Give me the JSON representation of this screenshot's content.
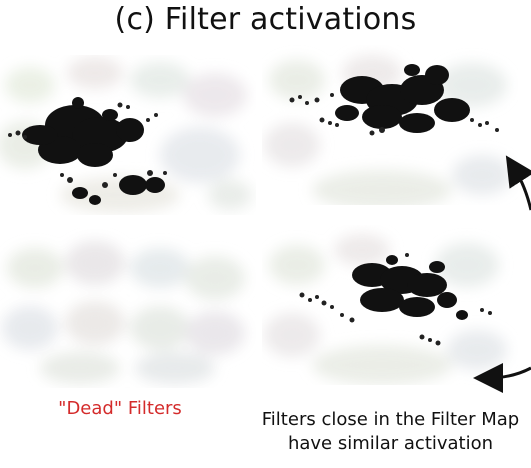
{
  "figure": {
    "title": "(c) Filter activations",
    "captions": {
      "dead_filters": "\"Dead\" Filters",
      "similar_line1": "Filters close in the Filter Map",
      "similar_line2": "have similar activation"
    }
  },
  "colors": {
    "title": "#111111",
    "dead_caption": "#d42b2b",
    "activation": "#111111",
    "background_blobs": "#e7ece4"
  }
}
